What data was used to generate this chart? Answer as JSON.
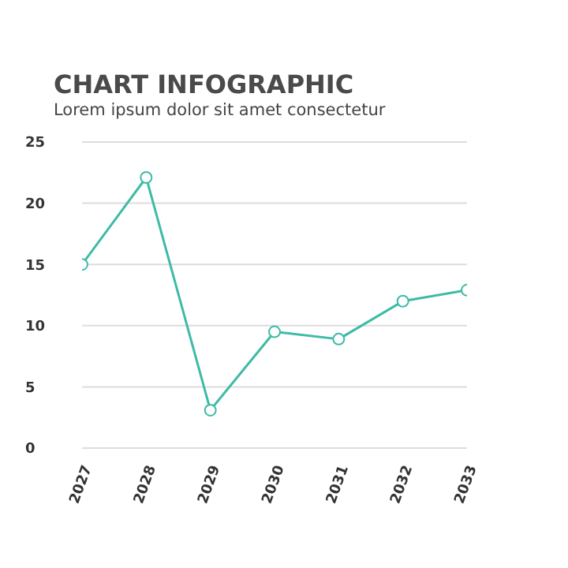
{
  "chart_data": {
    "type": "line",
    "title": "CHART INFOGRAPHIC",
    "subtitle": "Lorem ipsum dolor sit amet consectetur",
    "categories": [
      "2027",
      "2028",
      "2029",
      "2030",
      "2031",
      "2032",
      "2033"
    ],
    "series": [
      {
        "color": "#3dbba6",
        "values": [
          15,
          22.1,
          3.1,
          9.5,
          8.9,
          12,
          12.9
        ]
      }
    ],
    "ylim": [
      0,
      25
    ],
    "yticks": [
      0,
      5,
      10,
      15,
      20,
      25
    ],
    "grid": "y",
    "legend": false,
    "marker": "circle",
    "line_style": "solid"
  }
}
